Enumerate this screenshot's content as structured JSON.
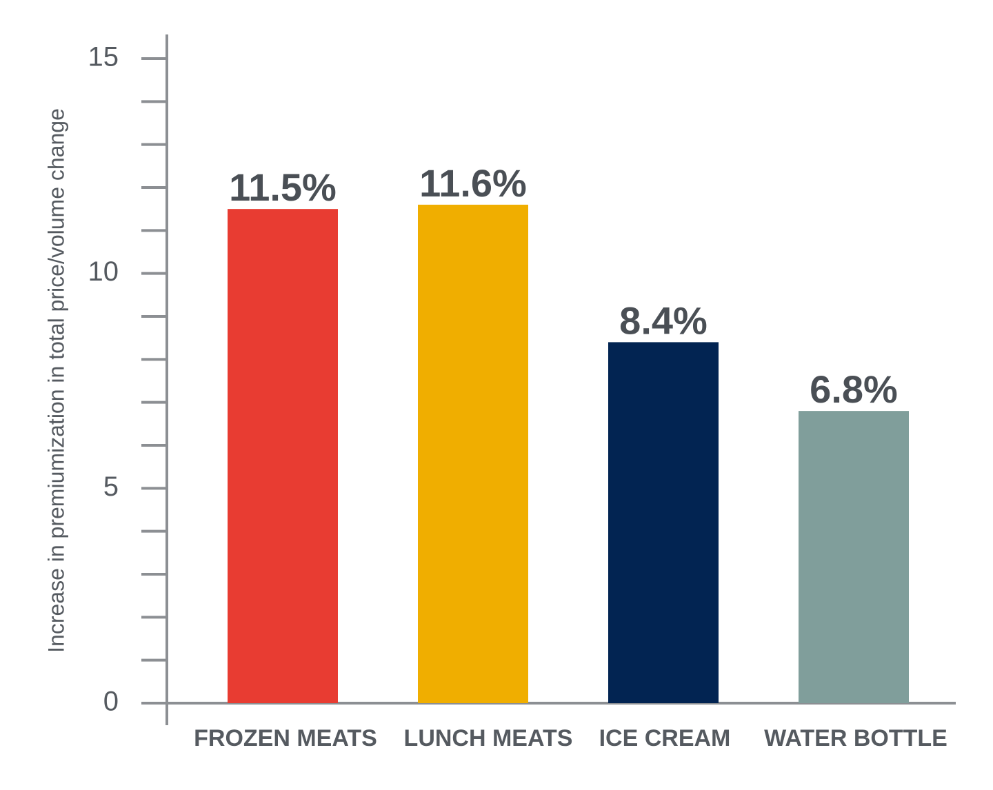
{
  "chart_data": {
    "type": "bar",
    "title": "",
    "xlabel": "",
    "ylabel": "Increase in premiumization in total price/volume change",
    "ylim": [
      0,
      15
    ],
    "y_major_ticks": [
      0,
      5,
      10,
      15
    ],
    "y_minor_step": 1,
    "grid": false,
    "categories": [
      "FROZEN MEATS",
      "LUNCH MEATS",
      "ICE CREAM",
      "WATER BOTTLE"
    ],
    "values": [
      11.5,
      11.6,
      8.4,
      6.8
    ],
    "value_labels": [
      "11.5%",
      "11.6%",
      "8.4%",
      "6.8%"
    ],
    "colors": [
      "#e83c32",
      "#f0ae00",
      "#022452",
      "#809e9b"
    ],
    "axis_color": "#8c8f93"
  }
}
